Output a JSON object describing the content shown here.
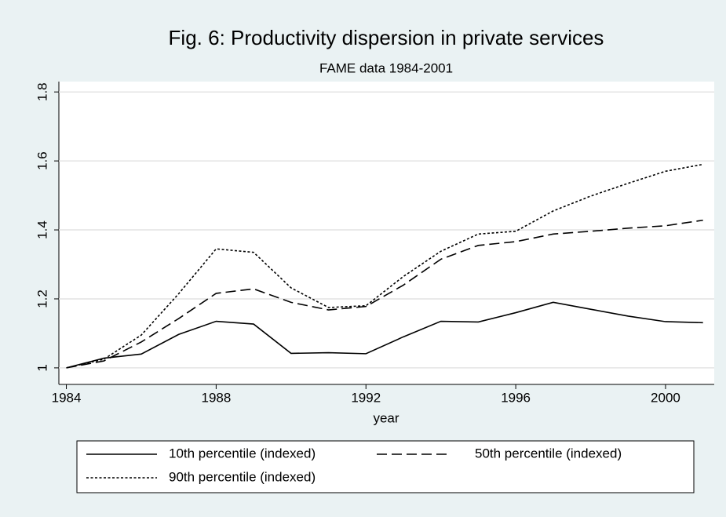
{
  "chart_data": {
    "type": "line",
    "title": "Fig. 6: Productivity dispersion in private services",
    "subtitle": "FAME data 1984-2001",
    "x_label": "year",
    "x": [
      1984,
      1985,
      1986,
      1987,
      1988,
      1989,
      1990,
      1991,
      1992,
      1993,
      1994,
      1995,
      1996,
      1997,
      1998,
      1999,
      2000,
      2001
    ],
    "series": [
      {
        "name": "10th percentile (indexed)",
        "color": "#000000",
        "dash": "solid",
        "values": [
          1.0,
          1.028,
          1.04,
          1.097,
          1.135,
          1.127,
          1.042,
          1.044,
          1.041,
          1.09,
          1.135,
          1.133,
          1.16,
          1.19,
          1.17,
          1.15,
          1.134,
          1.131
        ]
      },
      {
        "name": "50th percentile (indexed)",
        "color": "#000000",
        "dash": "long",
        "values": [
          1.0,
          1.02,
          1.075,
          1.143,
          1.216,
          1.229,
          1.19,
          1.168,
          1.178,
          1.24,
          1.315,
          1.355,
          1.366,
          1.388,
          1.396,
          1.405,
          1.412,
          1.428
        ]
      },
      {
        "name": "90th percentile (indexed)",
        "color": "#000000",
        "dash": "short",
        "values": [
          1.0,
          1.025,
          1.095,
          1.215,
          1.345,
          1.335,
          1.232,
          1.175,
          1.18,
          1.265,
          1.338,
          1.388,
          1.396,
          1.455,
          1.498,
          1.535,
          1.57,
          1.59
        ]
      }
    ],
    "xlim": [
      1983.8,
      2001.3
    ],
    "xticks": [
      1984,
      1988,
      1992,
      1996,
      2000
    ],
    "ylim": [
      0.952,
      1.83
    ],
    "yticks": [
      1,
      1.2,
      1.4,
      1.6,
      1.8
    ],
    "grid": true
  }
}
